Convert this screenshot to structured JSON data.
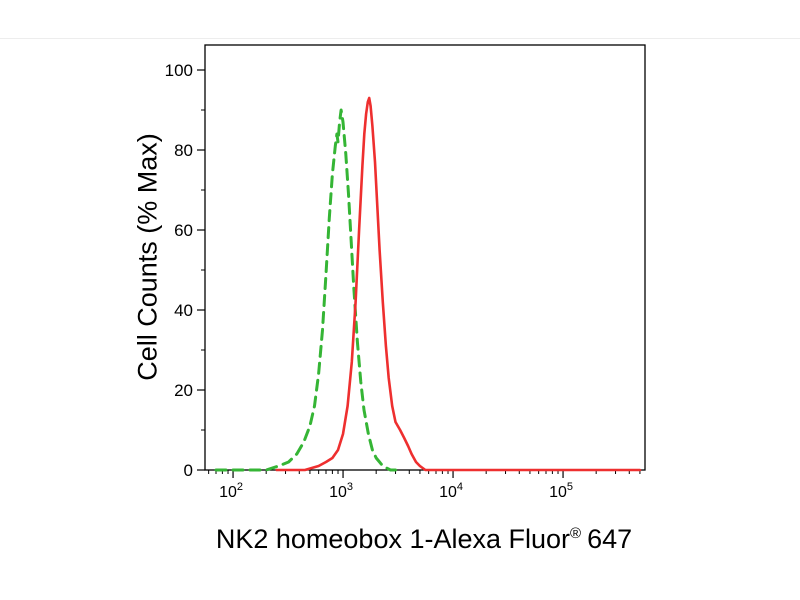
{
  "chart_data": {
    "type": "line",
    "chart_kind": "flow-cytometry-histogram",
    "title": "",
    "ylabel": "Cell Counts (% Max)",
    "xlabel_main": "NK2 homeobox 1-Alexa Fluor",
    "xlabel_sup": "®",
    "xlabel_suffix": "647",
    "x_scale": "log10",
    "x_range_log": [
      1.745,
      5.745
    ],
    "x_major_tick_exponents": [
      2,
      3,
      4,
      5
    ],
    "x_tick_base": "10",
    "ylim": [
      0,
      100
    ],
    "y_major_ticks": [
      0,
      20,
      40,
      60,
      80,
      100
    ],
    "y_minor_step": 10,
    "grid": false,
    "legend": "none",
    "frame_color": "#000000",
    "series": [
      {
        "id": "green-dashed-curve",
        "name": "green dashed histogram (control)",
        "color": "#35b535",
        "dash": "10 7",
        "width": 3,
        "points": [
          [
            70,
            0
          ],
          [
            200,
            0
          ],
          [
            260,
            1
          ],
          [
            320,
            2
          ],
          [
            380,
            4
          ],
          [
            440,
            7
          ],
          [
            500,
            11
          ],
          [
            550,
            16
          ],
          [
            600,
            24
          ],
          [
            650,
            35
          ],
          [
            700,
            49
          ],
          [
            750,
            63
          ],
          [
            800,
            74
          ],
          [
            850,
            81
          ],
          [
            880,
            84
          ],
          [
            900,
            82
          ],
          [
            930,
            87
          ],
          [
            960,
            90
          ],
          [
            1000,
            87
          ],
          [
            1060,
            79
          ],
          [
            1120,
            69
          ],
          [
            1180,
            58
          ],
          [
            1250,
            46
          ],
          [
            1350,
            32
          ],
          [
            1450,
            22
          ],
          [
            1550,
            15
          ],
          [
            1700,
            9
          ],
          [
            1850,
            5
          ],
          [
            2000,
            3
          ],
          [
            2300,
            1
          ],
          [
            2700,
            0
          ],
          [
            3000,
            0
          ]
        ]
      },
      {
        "id": "red-solid-curve",
        "name": "red solid histogram (stained)",
        "color": "#ee2f2f",
        "dash": "",
        "width": 2.6,
        "points": [
          [
            250,
            0
          ],
          [
            450,
            0
          ],
          [
            600,
            1
          ],
          [
            700,
            2
          ],
          [
            800,
            3
          ],
          [
            900,
            5
          ],
          [
            1000,
            9
          ],
          [
            1100,
            16
          ],
          [
            1200,
            27
          ],
          [
            1300,
            42
          ],
          [
            1400,
            60
          ],
          [
            1500,
            76
          ],
          [
            1560,
            84
          ],
          [
            1620,
            89
          ],
          [
            1680,
            92
          ],
          [
            1730,
            93
          ],
          [
            1780,
            91
          ],
          [
            1850,
            86
          ],
          [
            1950,
            77
          ],
          [
            2050,
            66
          ],
          [
            2150,
            55
          ],
          [
            2300,
            42
          ],
          [
            2450,
            31
          ],
          [
            2600,
            23
          ],
          [
            2800,
            16
          ],
          [
            3000,
            12
          ],
          [
            3300,
            10
          ],
          [
            3600,
            8
          ],
          [
            3900,
            6
          ],
          [
            4200,
            4
          ],
          [
            4600,
            2
          ],
          [
            5000,
            1
          ],
          [
            5600,
            0
          ],
          [
            500000,
            0
          ]
        ]
      }
    ]
  }
}
